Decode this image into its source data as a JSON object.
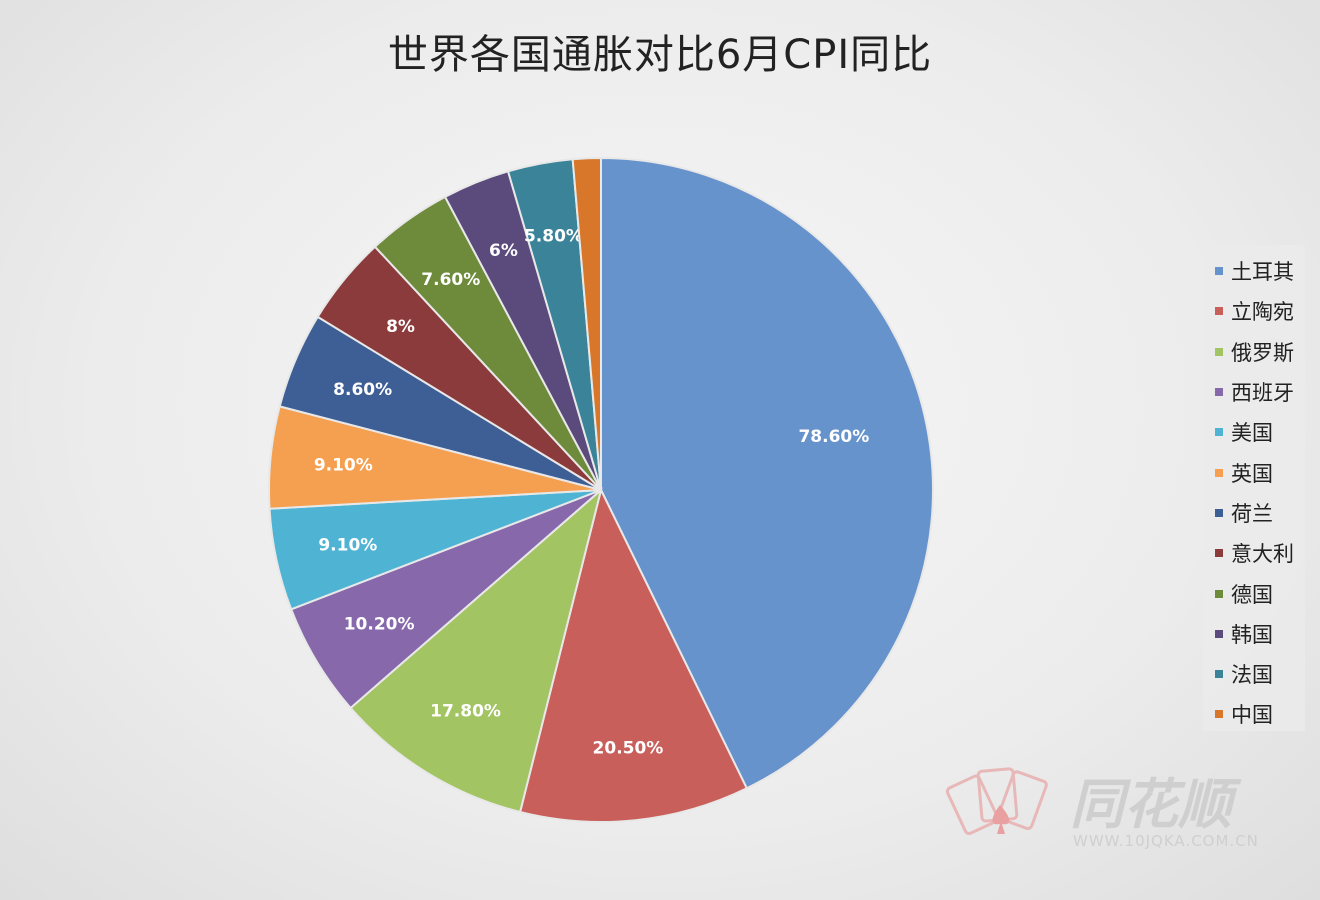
{
  "chart_data": {
    "type": "pie",
    "title": "世界各国通胀对比6月CPI同比",
    "categories": [
      "土耳其",
      "立陶宛",
      "俄罗斯",
      "西班牙",
      "美国",
      "英国",
      "荷兰",
      "意大利",
      "德国",
      "韩国",
      "法国",
      "中国"
    ],
    "values": [
      78.6,
      20.5,
      17.8,
      10.2,
      9.1,
      9.1,
      8.6,
      8,
      7.6,
      6,
      5.8,
      2.5
    ],
    "data_labels": [
      "78.60%",
      "20.50%",
      "17.80%",
      "10.20%",
      "9.10%",
      "9.10%",
      "8.60%",
      "8%",
      "7.60%",
      "6%",
      "5.80%",
      ""
    ],
    "colors": [
      "#6793cd",
      "#c95f5a",
      "#a3c463",
      "#8768ab",
      "#4fb4d4",
      "#f5a050",
      "#3e5f96",
      "#8b3b3b",
      "#6e8a3b",
      "#5b4a7c",
      "#3a8399",
      "#d8772a"
    ],
    "start_angle": "12 o'clock",
    "direction": "clockwise",
    "legend_position": "right"
  },
  "watermark": {
    "text": "同花顺",
    "url_text": "WWW.10JQKA.COM.CN"
  }
}
